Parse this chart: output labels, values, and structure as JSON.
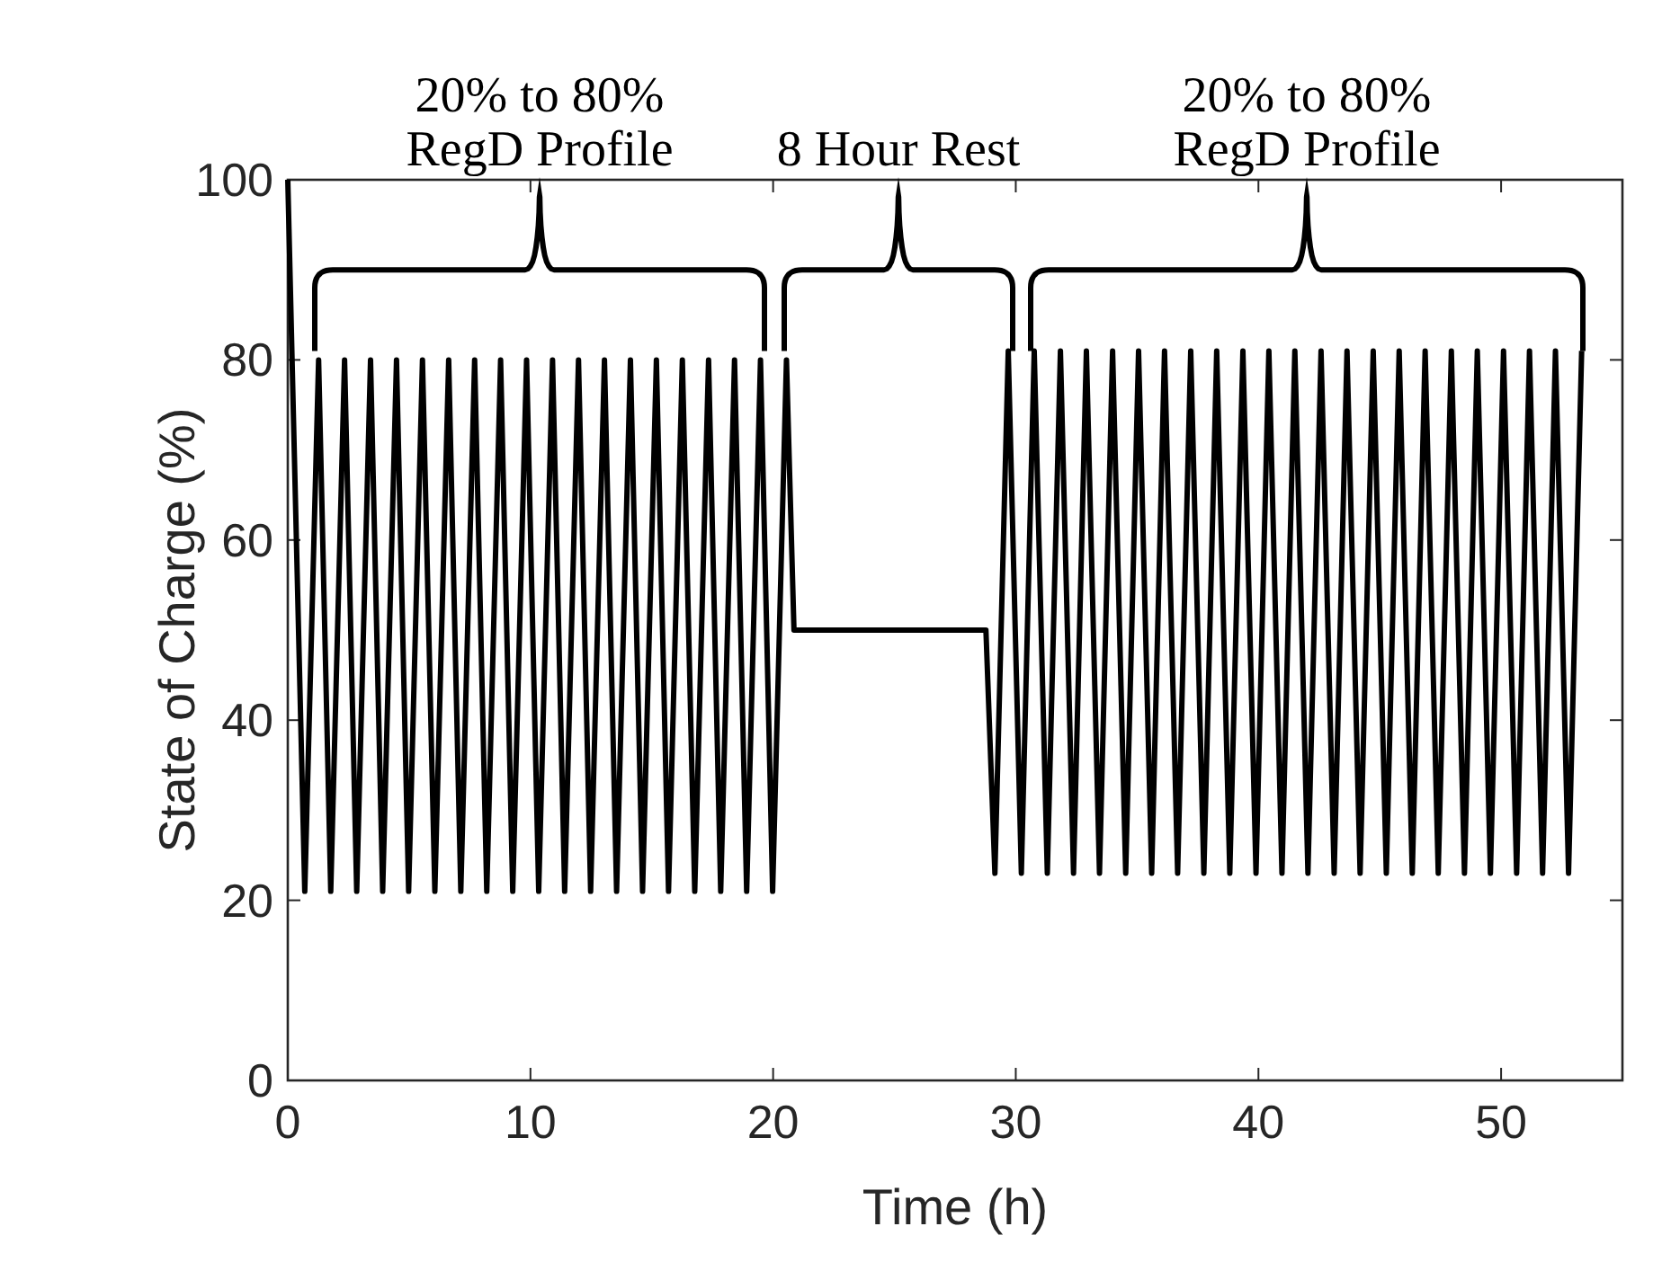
{
  "chart_data": {
    "type": "line",
    "xlabel": "Time (h)",
    "ylabel": "State of Charge (%)",
    "x": [
      0,
      0.7,
      1.27,
      1.77,
      2.34,
      2.84,
      3.41,
      3.91,
      4.48,
      4.98,
      5.55,
      6.06,
      6.63,
      7.13,
      7.7,
      8.2,
      8.77,
      9.27,
      9.84,
      10.34,
      10.91,
      11.41,
      11.98,
      12.48,
      13.05,
      13.55,
      14.12,
      14.62,
      15.19,
      15.69,
      16.26,
      16.77,
      17.34,
      17.84,
      18.41,
      18.91,
      19.48,
      19.98,
      20.55,
      20.86,
      28.77,
      29.14,
      29.69,
      30.23,
      30.76,
      31.3,
      31.84,
      32.38,
      32.91,
      33.45,
      33.99,
      34.53,
      35.06,
      35.6,
      36.13,
      36.67,
      37.21,
      37.75,
      38.28,
      38.82,
      39.36,
      39.9,
      40.43,
      40.97,
      41.5,
      42.04,
      42.58,
      43.12,
      43.65,
      44.19,
      44.73,
      45.27,
      45.8,
      46.34,
      46.87,
      47.41,
      47.95,
      48.49,
      49.02,
      49.56,
      50.1,
      50.64,
      51.17,
      51.71,
      52.24,
      52.78,
      53.32
    ],
    "series": [
      {
        "color": "#000000",
        "values": [
          100,
          21,
          80,
          21,
          80,
          21,
          80,
          21,
          80,
          21,
          80,
          21,
          80,
          21,
          80,
          21,
          80,
          21,
          80,
          21,
          80,
          21,
          80,
          21,
          80,
          21,
          80,
          21,
          80,
          21,
          80,
          21,
          80,
          21,
          80,
          21,
          80,
          21,
          80,
          50,
          50,
          23,
          81,
          23,
          81,
          23,
          81,
          23,
          81,
          23,
          81,
          23,
          81,
          23,
          81,
          23,
          81,
          23,
          81,
          23,
          81,
          23,
          81,
          23,
          81,
          23,
          81,
          23,
          81,
          23,
          81,
          23,
          81,
          23,
          81,
          23,
          81,
          23,
          81,
          23,
          81,
          23,
          81,
          23,
          81,
          23,
          81
        ]
      }
    ],
    "xlim": [
      0,
      55
    ],
    "ylim": [
      0,
      100
    ],
    "xticks": [
      0,
      10,
      20,
      30,
      40,
      50
    ],
    "yticks": [
      0,
      20,
      40,
      60,
      80,
      100
    ],
    "grid": false,
    "marker": "none",
    "line_style": "solid",
    "annotations": [
      "20% to 80%\nRegD Profile",
      "8 Hour Rest",
      "20% to 80%\nRegD Profile"
    ]
  }
}
